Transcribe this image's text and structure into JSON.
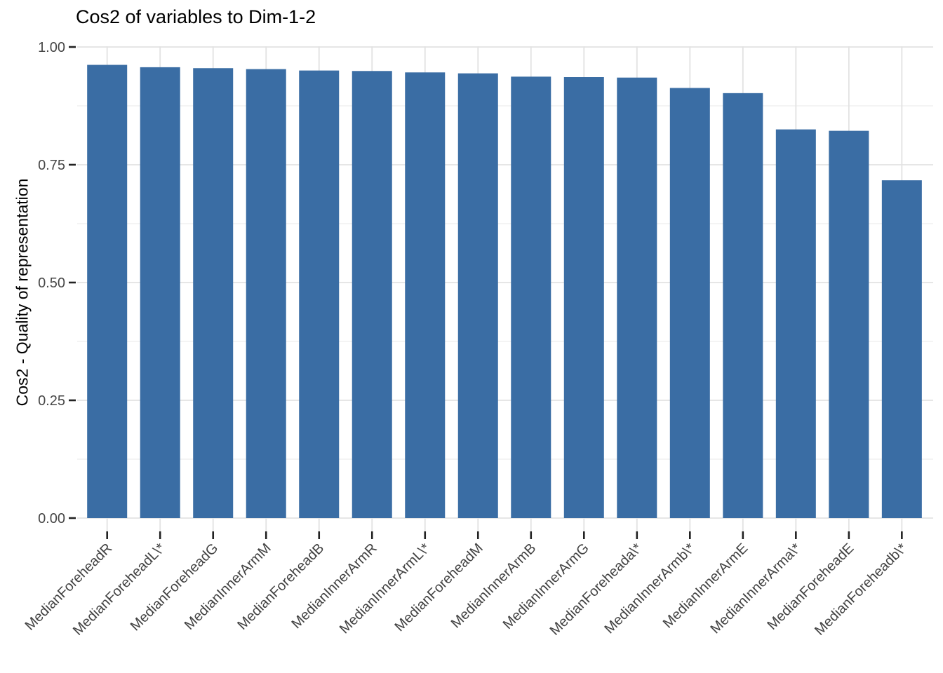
{
  "chart_data": {
    "type": "bar",
    "title": "Cos2 of variables to Dim-1-2",
    "xlabel": "",
    "ylabel": "Cos2 - Quality of representation",
    "categories": [
      "MedianForeheadR",
      "MedianForeheadL\\*",
      "MedianForeheadG",
      "MedianInnerArmM",
      "MedianForeheadB",
      "MedianInnerArmR",
      "MedianInnerArmL\\*",
      "MedianForeheadM",
      "MedianInnerArmB",
      "MedianInnerArmG",
      "MedianForeheada\\*",
      "MedianInnerArmb\\*",
      "MedianInnerArmE",
      "MedianInnerArma\\*",
      "MedianForeheadE",
      "MedianForeheadb\\*"
    ],
    "values": [
      0.962,
      0.957,
      0.955,
      0.953,
      0.95,
      0.949,
      0.946,
      0.944,
      0.937,
      0.936,
      0.935,
      0.913,
      0.902,
      0.825,
      0.822,
      0.717
    ],
    "ylim": [
      0,
      1
    ],
    "y_ticks": [
      0,
      0.25,
      0.5,
      0.75,
      1.0
    ],
    "y_tick_labels": [
      "0.00",
      "0.25",
      "0.50",
      "0.75",
      "1.00"
    ],
    "y_minor_ticks": [
      0.125,
      0.375,
      0.625,
      0.875
    ],
    "x_tick_rotation": 45,
    "grid": true,
    "legend": "none",
    "colors": {
      "bar": "#3A6DA4",
      "grid_major": "#E2E2E2",
      "grid_minor": "#EDEDED",
      "tick": "#222222",
      "y_axis_text": "#474747",
      "x_axis_text": "#424242",
      "title_text": "#000000",
      "background": "#FFFFFF"
    }
  }
}
